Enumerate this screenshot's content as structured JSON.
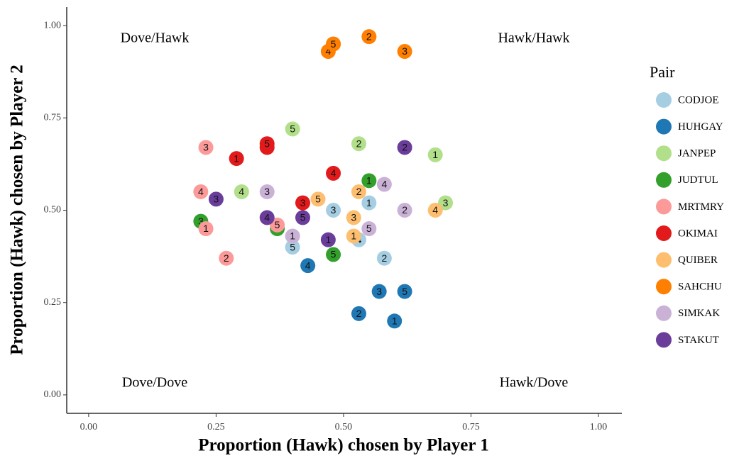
{
  "chart_data": {
    "type": "scatter",
    "xlabel": "Proportion (Hawk) chosen by Player 1",
    "ylabel": "Proportion (Hawk) chosen by Player 2",
    "xlim": [
      -0.043,
      1.046
    ],
    "ylim": [
      -0.05,
      1.05
    ],
    "xticks": [
      {
        "value": 0,
        "label": "0.00"
      },
      {
        "value": 0.25,
        "label": "0.25"
      },
      {
        "value": 0.5,
        "label": "0.50"
      },
      {
        "value": 0.75,
        "label": "0.75"
      },
      {
        "value": 1,
        "label": "1.00"
      }
    ],
    "yticks": [
      {
        "value": 0,
        "label": "0.00"
      },
      {
        "value": 0.25,
        "label": "0.25"
      },
      {
        "value": 0.5,
        "label": "0.50"
      },
      {
        "value": 0.75,
        "label": "0.75"
      },
      {
        "value": 1,
        "label": "1.00"
      }
    ],
    "annotations": [
      "Dove/Hawk",
      "Hawk/Hawk",
      "Dove/Dove",
      "Hawk/Dove"
    ],
    "legend_title": "Pair",
    "series": [
      {
        "name": "CODJOE",
        "color": "#a6cee3",
        "labels": [
          1,
          2,
          3,
          4,
          5
        ],
        "x": [
          0.55,
          0.58,
          0.48,
          0.53,
          0.4
        ],
        "y": [
          0.52,
          0.37,
          0.5,
          0.42,
          0.4
        ]
      },
      {
        "name": "HUHGAY",
        "color": "#1f78b4",
        "labels": [
          1,
          2,
          3,
          4,
          5
        ],
        "x": [
          0.6,
          0.53,
          0.57,
          0.43,
          0.62
        ],
        "y": [
          0.2,
          0.22,
          0.28,
          0.35,
          0.28
        ]
      },
      {
        "name": "JANPEP",
        "color": "#b2df8a",
        "labels": [
          1,
          2,
          3,
          4,
          5
        ],
        "x": [
          0.68,
          0.53,
          0.7,
          0.3,
          0.4
        ],
        "y": [
          0.65,
          0.68,
          0.52,
          0.55,
          0.72
        ]
      },
      {
        "name": "JUDTUL",
        "color": "#33a02c",
        "labels": [
          1,
          3,
          4,
          5
        ],
        "x": [
          0.55,
          0.22,
          0.37,
          0.48
        ],
        "y": [
          0.58,
          0.47,
          0.45,
          0.38
        ]
      },
      {
        "name": "MRTMRY",
        "color": "#fb9a99",
        "labels": [
          1,
          2,
          3,
          4,
          5
        ],
        "x": [
          0.23,
          0.27,
          0.23,
          0.22,
          0.37
        ],
        "y": [
          0.45,
          0.37,
          0.67,
          0.55,
          0.46
        ]
      },
      {
        "name": "OKIMAI",
        "color": "#e31a1c",
        "labels": [
          1,
          2,
          3,
          4,
          5
        ],
        "x": [
          0.29,
          0.35,
          0.42,
          0.48,
          0.35
        ],
        "y": [
          0.64,
          0.67,
          0.52,
          0.6,
          0.68
        ]
      },
      {
        "name": "QUIBER",
        "color": "#fdbf6f",
        "labels": [
          1,
          2,
          3,
          4,
          5
        ],
        "x": [
          0.52,
          0.53,
          0.52,
          0.68,
          0.45
        ],
        "y": [
          0.43,
          0.55,
          0.48,
          0.5,
          0.53
        ]
      },
      {
        "name": "SAHCHU",
        "color": "#ff7f00",
        "labels": [
          1,
          2,
          3,
          4,
          5
        ],
        "x": [
          0.48,
          0.55,
          0.62,
          0.47,
          0.48
        ],
        "y": [
          0.95,
          0.97,
          0.93,
          0.93,
          0.95
        ]
      },
      {
        "name": "SIMKAK",
        "color": "#cab2d6",
        "labels": [
          1,
          2,
          3,
          4,
          5
        ],
        "x": [
          0.4,
          0.62,
          0.35,
          0.58,
          0.55
        ],
        "y": [
          0.43,
          0.5,
          0.55,
          0.57,
          0.45
        ]
      },
      {
        "name": "STAKUT",
        "color": "#6a3d9a",
        "labels": [
          1,
          2,
          3,
          4,
          5
        ],
        "x": [
          0.47,
          0.62,
          0.25,
          0.35,
          0.42
        ],
        "y": [
          0.42,
          0.67,
          0.53,
          0.48,
          0.48
        ]
      }
    ]
  }
}
